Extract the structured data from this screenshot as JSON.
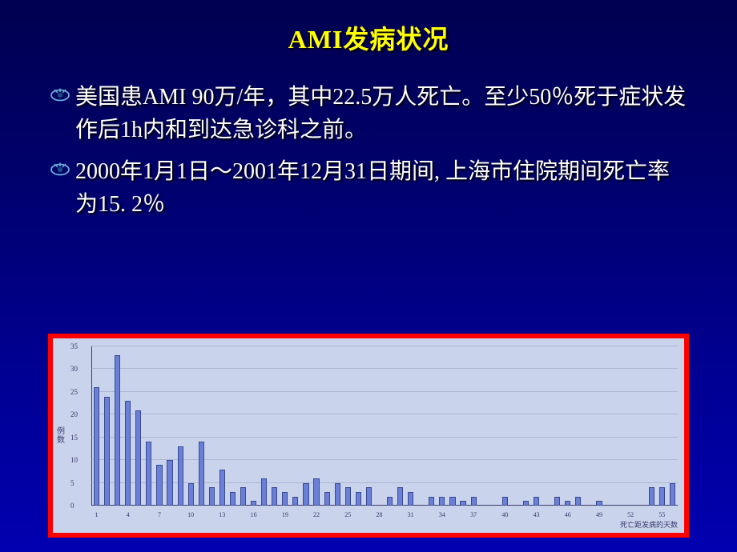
{
  "slide": {
    "title": "AMI发病状况",
    "bullets": [
      "美国患AMI 90万/年，其中22.5万人死亡。至少50％死于症状发作后1h内和到达急诊科之前。",
      "2000年1月1日～2001年12月31日期间, 上海市住院期间死亡率为15. 2％"
    ]
  },
  "chart": {
    "type": "bar",
    "y_label": "例数",
    "x_label": "死亡距发病的天数",
    "background_color": "#cad3ec",
    "frame_color": "#ff0000",
    "bar_color": "#6a7fd8",
    "bar_border": "#3a4a90",
    "grid_color": "#8a94b8",
    "text_color": "#3a3a6a",
    "font_size_ticks": 9,
    "ylim": [
      0,
      35
    ],
    "ytick_step": 5,
    "bar_width_ratio": 0.55,
    "x_categories": [
      1,
      2,
      3,
      4,
      5,
      6,
      7,
      8,
      9,
      10,
      11,
      12,
      13,
      14,
      15,
      16,
      17,
      18,
      19,
      20,
      21,
      22,
      23,
      24,
      25,
      26,
      27,
      28,
      29,
      30,
      31,
      32,
      33,
      34,
      35,
      36,
      37,
      38,
      39,
      40,
      41,
      42,
      43,
      44,
      45,
      46,
      47,
      48,
      49,
      50,
      51,
      52,
      53,
      54,
      55,
      56
    ],
    "x_tick_every": 3,
    "values": [
      26,
      24,
      33,
      23,
      21,
      14,
      9,
      10,
      13,
      5,
      14,
      4,
      8,
      3,
      4,
      1,
      6,
      4,
      3,
      2,
      5,
      6,
      3,
      5,
      4,
      3,
      4,
      0,
      2,
      4,
      3,
      0,
      2,
      2,
      2,
      1,
      2,
      0,
      0,
      2,
      0,
      1,
      2,
      0,
      2,
      1,
      2,
      0,
      1,
      0,
      0,
      0,
      0,
      4,
      4,
      5
    ]
  },
  "colors": {
    "title_color": "#ffff00",
    "bullet_text_color": "#ffffff",
    "bg_top": "#000050",
    "bg_bottom": "#0000b0"
  }
}
